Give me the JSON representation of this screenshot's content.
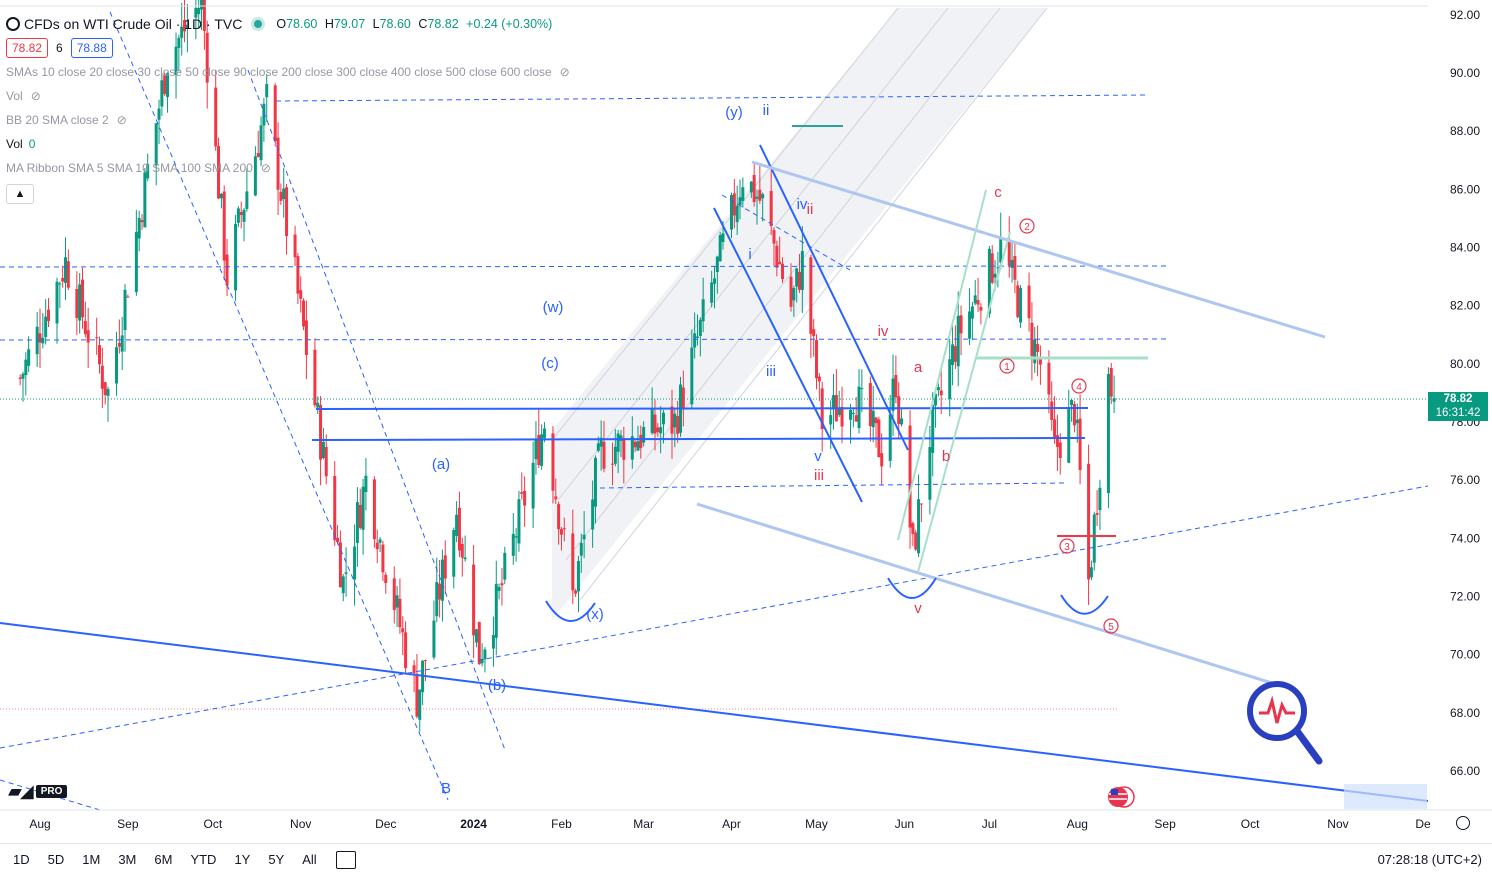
{
  "header": {
    "symbol_title": "CFDs on WTI Crude Oil · 1D · TVC",
    "ohlc": {
      "o": "78.60",
      "h": "79.07",
      "l": "78.60",
      "c": "78.82",
      "change": "+0.24 (+0.30%)"
    },
    "bid": "78.82",
    "spread": "6",
    "ask": "78.88"
  },
  "indicators": [
    {
      "label": "SMAs 10 close 20 close 30 close 50 close 90 close 200 close 300 close 400 close 500 close 600 close"
    },
    {
      "label": "Vol"
    },
    {
      "label": "BB 20 SMA close 2"
    },
    {
      "label": "Vol",
      "value": "0"
    },
    {
      "label": "MA Ribbon SMA 5 SMA 10 SMA 100 SMA 200"
    }
  ],
  "toolbar": {
    "timeframes": [
      "1D",
      "5D",
      "1M",
      "3M",
      "6M",
      "YTD",
      "1Y",
      "5Y",
      "All"
    ],
    "clock": "07:28:18 (UTC+2)"
  },
  "last_price": {
    "price": "78.82",
    "countdown": "16:31:42"
  },
  "logo": {
    "pro": "PRO"
  },
  "colors": {
    "up": "#089981",
    "down": "#f23645",
    "blue": "#2962ff",
    "light_blue": "#aec6f0",
    "label_red": "#e8354f"
  },
  "chart_data": {
    "type": "candlestick",
    "title": "CFDs on WTI Crude Oil · 1D · TVC",
    "x_range": [
      "2023-07-25",
      "2024-12-05"
    ],
    "ylim": [
      65.0,
      92.5
    ],
    "y_ticks": [
      "92.00",
      "90.00",
      "88.00",
      "86.00",
      "84.00",
      "82.00",
      "80.00",
      "78.00",
      "76.00",
      "74.00",
      "72.00",
      "70.00",
      "68.00",
      "66.00"
    ],
    "x_ticks": [
      {
        "label": "Aug",
        "date": "2023-08-01"
      },
      {
        "label": "Sep",
        "date": "2023-09-01"
      },
      {
        "label": "Oct",
        "date": "2023-10-01"
      },
      {
        "label": "Nov",
        "date": "2023-11-01"
      },
      {
        "label": "Dec",
        "date": "2023-12-01"
      },
      {
        "label": "2024",
        "date": "2024-01-01"
      },
      {
        "label": "Feb",
        "date": "2024-02-01"
      },
      {
        "label": "Mar",
        "date": "2024-03-01"
      },
      {
        "label": "Apr",
        "date": "2024-04-01"
      },
      {
        "label": "May",
        "date": "2024-05-01"
      },
      {
        "label": "Jun",
        "date": "2024-06-01"
      },
      {
        "label": "Jul",
        "date": "2024-07-01"
      },
      {
        "label": "Aug",
        "date": "2024-08-01"
      },
      {
        "label": "Sep",
        "date": "2024-09-01"
      },
      {
        "label": "Oct",
        "date": "2024-10-01"
      },
      {
        "label": "Nov",
        "date": "2024-11-01"
      },
      {
        "label": "De",
        "date": "2024-12-01"
      }
    ],
    "price_anchors": [
      [
        "2023-07-25",
        79.5
      ],
      [
        "2023-08-10",
        83.5
      ],
      [
        "2023-08-25",
        79.0
      ],
      [
        "2023-09-15",
        90.5
      ],
      [
        "2023-09-27",
        92.5
      ],
      [
        "2023-10-06",
        83.0
      ],
      [
        "2023-10-20",
        89.0
      ],
      [
        "2023-11-03",
        80.5
      ],
      [
        "2023-11-16",
        72.5
      ],
      [
        "2023-11-24",
        76.0
      ],
      [
        "2023-12-12",
        68.5
      ],
      [
        "2023-12-26",
        75.0
      ],
      [
        "2024-01-03",
        70.0
      ],
      [
        "2024-01-10",
        72.0
      ],
      [
        "2024-01-26",
        78.0
      ],
      [
        "2024-02-05",
        72.0
      ],
      [
        "2024-02-15",
        77.0
      ],
      [
        "2024-03-12",
        78.0
      ],
      [
        "2024-04-05",
        86.5
      ],
      [
        "2024-04-12",
        85.5
      ],
      [
        "2024-04-22",
        82.0
      ],
      [
        "2024-04-26",
        83.5
      ],
      [
        "2024-05-03",
        78.0
      ],
      [
        "2024-05-14",
        79.0
      ],
      [
        "2024-05-24",
        77.0
      ],
      [
        "2024-05-29",
        79.5
      ],
      [
        "2024-06-04",
        73.5
      ],
      [
        "2024-06-10",
        77.5
      ],
      [
        "2024-06-20",
        81.0
      ],
      [
        "2024-07-05",
        84.0
      ],
      [
        "2024-07-12",
        82.0
      ],
      [
        "2024-07-19",
        80.0
      ],
      [
        "2024-07-24",
        77.0
      ],
      [
        "2024-07-31",
        78.5
      ],
      [
        "2024-08-05",
        72.5
      ],
      [
        "2024-08-09",
        76.5
      ],
      [
        "2024-08-12",
        79.5
      ],
      [
        "2024-08-14",
        78.82
      ]
    ],
    "last_close": 78.82,
    "wave_labels": {
      "blue": [
        "(y)",
        "ii",
        "(w)",
        "(c)",
        "(a)",
        "(b)",
        "(x)",
        "B",
        "i",
        "iii",
        "iv",
        "v"
      ],
      "red": [
        "ii",
        "iii",
        "iv",
        "a",
        "b",
        "c",
        "v"
      ],
      "circled": [
        "1",
        "2",
        "3",
        "4",
        "5"
      ]
    }
  }
}
